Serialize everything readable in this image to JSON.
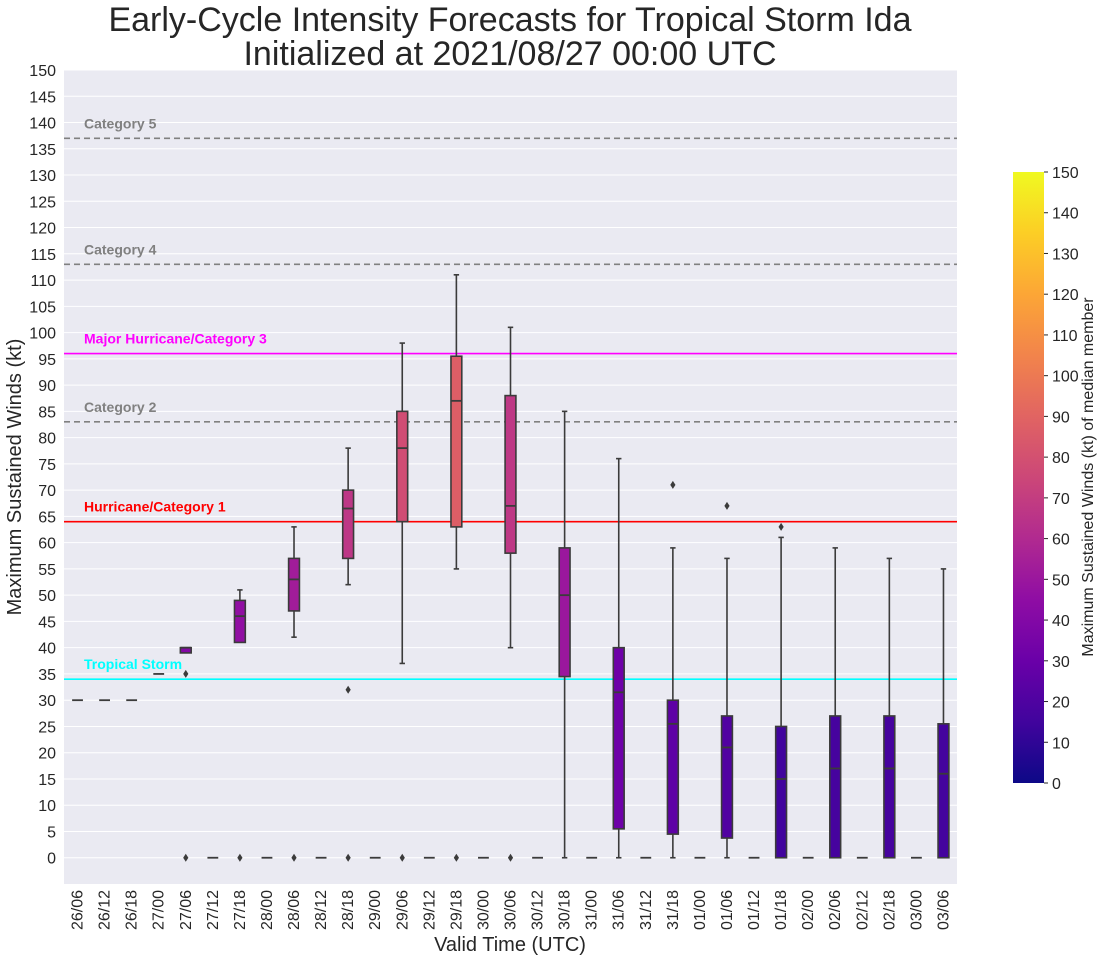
{
  "chart_data": {
    "type": "box",
    "title_line1": "Early-Cycle Intensity Forecasts for Tropical Storm Ida",
    "title_line2": "Initialized at 2021/08/27 00:00 UTC",
    "xlabel": "Valid Time (UTC)",
    "ylabel": "Maximum Sustained Winds (kt)",
    "ylim": [
      -5,
      150
    ],
    "yticks": [
      0,
      5,
      10,
      15,
      20,
      25,
      30,
      35,
      40,
      45,
      50,
      55,
      60,
      65,
      70,
      75,
      80,
      85,
      90,
      95,
      100,
      105,
      110,
      115,
      120,
      125,
      130,
      135,
      140,
      145,
      150
    ],
    "grid": true,
    "categories": [
      "26/06",
      "26/12",
      "26/18",
      "27/00",
      "27/06",
      "27/12",
      "27/18",
      "28/00",
      "28/06",
      "28/12",
      "28/18",
      "29/00",
      "29/06",
      "29/12",
      "29/18",
      "30/00",
      "30/06",
      "30/12",
      "30/18",
      "31/00",
      "31/06",
      "31/12",
      "31/18",
      "01/00",
      "01/06",
      "01/12",
      "01/18",
      "02/00",
      "02/06",
      "02/12",
      "02/18",
      "03/00",
      "03/06"
    ],
    "boxes": [
      {
        "q1": 30,
        "median": 30,
        "q3": 30,
        "whisker_low": 30,
        "whisker_high": 30,
        "outliers": []
      },
      {
        "q1": 30,
        "median": 30,
        "q3": 30,
        "whisker_low": 30,
        "whisker_high": 30,
        "outliers": []
      },
      {
        "q1": 30,
        "median": 30,
        "q3": 30,
        "whisker_low": 30,
        "whisker_high": 30,
        "outliers": []
      },
      {
        "q1": 35,
        "median": 35,
        "q3": 35,
        "whisker_low": 35,
        "whisker_high": 35,
        "outliers": []
      },
      {
        "q1": 39,
        "median": 40,
        "q3": 40,
        "whisker_low": 39,
        "whisker_high": 40,
        "outliers": [
          35,
          0
        ]
      },
      {
        "q1": 0,
        "median": 0,
        "q3": 0,
        "whisker_low": 0,
        "whisker_high": 0,
        "outliers": []
      },
      {
        "q1": 41,
        "median": 46,
        "q3": 49,
        "whisker_low": 41,
        "whisker_high": 51,
        "outliers": [
          0
        ]
      },
      {
        "q1": 0,
        "median": 0,
        "q3": 0,
        "whisker_low": 0,
        "whisker_high": 0,
        "outliers": []
      },
      {
        "q1": 47,
        "median": 53,
        "q3": 57,
        "whisker_low": 42,
        "whisker_high": 63,
        "outliers": [
          0
        ]
      },
      {
        "q1": 0,
        "median": 0,
        "q3": 0,
        "whisker_low": 0,
        "whisker_high": 0,
        "outliers": []
      },
      {
        "q1": 57,
        "median": 66.5,
        "q3": 70,
        "whisker_low": 52,
        "whisker_high": 78,
        "outliers": [
          32,
          0
        ]
      },
      {
        "q1": 0,
        "median": 0,
        "q3": 0,
        "whisker_low": 0,
        "whisker_high": 0,
        "outliers": []
      },
      {
        "q1": 64,
        "median": 78,
        "q3": 85,
        "whisker_low": 37,
        "whisker_high": 98,
        "outliers": [
          0
        ]
      },
      {
        "q1": 0,
        "median": 0,
        "q3": 0,
        "whisker_low": 0,
        "whisker_high": 0,
        "outliers": []
      },
      {
        "q1": 63,
        "median": 87,
        "q3": 95.5,
        "whisker_low": 55,
        "whisker_high": 111,
        "outliers": [
          0
        ]
      },
      {
        "q1": 0,
        "median": 0,
        "q3": 0,
        "whisker_low": 0,
        "whisker_high": 0,
        "outliers": []
      },
      {
        "q1": 58,
        "median": 67,
        "q3": 88,
        "whisker_low": 40,
        "whisker_high": 101,
        "outliers": [
          0
        ]
      },
      {
        "q1": 0,
        "median": 0,
        "q3": 0,
        "whisker_low": 0,
        "whisker_high": 0,
        "outliers": []
      },
      {
        "q1": 34.5,
        "median": 50,
        "q3": 59,
        "whisker_low": 0,
        "whisker_high": 85,
        "outliers": []
      },
      {
        "q1": 0,
        "median": 0,
        "q3": 0,
        "whisker_low": 0,
        "whisker_high": 0,
        "outliers": []
      },
      {
        "q1": 5.5,
        "median": 31.5,
        "q3": 40,
        "whisker_low": 0,
        "whisker_high": 76,
        "outliers": []
      },
      {
        "q1": 0,
        "median": 0,
        "q3": 0,
        "whisker_low": 0,
        "whisker_high": 0,
        "outliers": []
      },
      {
        "q1": 4.5,
        "median": 25.5,
        "q3": 30,
        "whisker_low": 0,
        "whisker_high": 59,
        "outliers": [
          71
        ]
      },
      {
        "q1": 0,
        "median": 0,
        "q3": 0,
        "whisker_low": 0,
        "whisker_high": 0,
        "outliers": []
      },
      {
        "q1": 3.75,
        "median": 21,
        "q3": 27,
        "whisker_low": 0,
        "whisker_high": 57,
        "outliers": [
          67
        ]
      },
      {
        "q1": 0,
        "median": 0,
        "q3": 0,
        "whisker_low": 0,
        "whisker_high": 0,
        "outliers": []
      },
      {
        "q1": 0,
        "median": 15,
        "q3": 25,
        "whisker_low": 0,
        "whisker_high": 61,
        "outliers": [
          63
        ]
      },
      {
        "q1": 0,
        "median": 0,
        "q3": 0,
        "whisker_low": 0,
        "whisker_high": 0,
        "outliers": []
      },
      {
        "q1": 0,
        "median": 17,
        "q3": 27,
        "whisker_low": 0,
        "whisker_high": 59,
        "outliers": []
      },
      {
        "q1": 0,
        "median": 0,
        "q3": 0,
        "whisker_low": 0,
        "whisker_high": 0,
        "outliers": []
      },
      {
        "q1": 0,
        "median": 17,
        "q3": 27,
        "whisker_low": 0,
        "whisker_high": 57,
        "outliers": []
      },
      {
        "q1": 0,
        "median": 0,
        "q3": 0,
        "whisker_low": 0,
        "whisker_high": 0,
        "outliers": []
      },
      {
        "q1": 0,
        "median": 16,
        "q3": 25.5,
        "whisker_low": 0,
        "whisker_high": 55,
        "outliers": []
      }
    ],
    "thresholds": [
      {
        "label": "Category 5",
        "value": 137,
        "color": "#808080",
        "style": "dashed"
      },
      {
        "label": "Category 4",
        "value": 113,
        "color": "#808080",
        "style": "dashed"
      },
      {
        "label": "Major Hurricane/Category 3",
        "value": 96,
        "color": "#ff00ff",
        "style": "solid"
      },
      {
        "label": "Category 2",
        "value": 83,
        "color": "#808080",
        "style": "dashed"
      },
      {
        "label": "Hurricane/Category 1",
        "value": 64,
        "color": "#ff0000",
        "style": "solid"
      },
      {
        "label": "Tropical Storm",
        "value": 34,
        "color": "#00ffff",
        "style": "solid"
      }
    ],
    "colorbar": {
      "label": "Maximum Sustained Winds (kt) of median member",
      "min": 0,
      "max": 150,
      "ticks": [
        0,
        10,
        20,
        30,
        40,
        50,
        60,
        70,
        80,
        90,
        100,
        110,
        120,
        130,
        140,
        150
      ],
      "colormap": "plasma"
    },
    "colors": {
      "plot_background": "#eaeaf2",
      "grid": "#ffffff",
      "box_edge": "#3b3b3b"
    }
  }
}
